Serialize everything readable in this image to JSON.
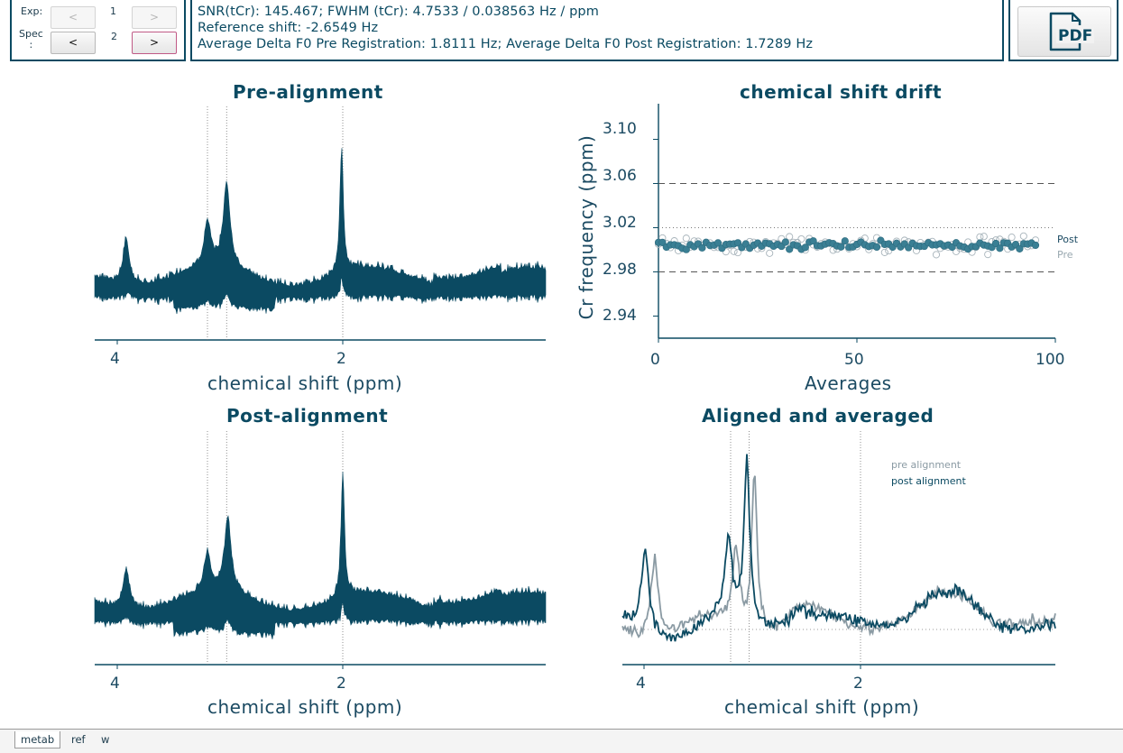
{
  "nav": {
    "exp_label": "Exp:",
    "spec_label": "Spec\n:",
    "exp_value": "1",
    "spec_value": "2",
    "prev_label": "<",
    "next_label": ">"
  },
  "info": {
    "line1": "SNR(tCr): 145.467; FWHM (tCr): 4.7533 / 0.038563 Hz / ppm",
    "line2": "Reference shift: -2.6549 Hz",
    "line3": "Average Delta F0 Pre Registration: 1.8111 Hz; Average Delta F0 Post Registration: 1.7289 Hz"
  },
  "pdf_button": {
    "label": "PDF",
    "icon": "pdf-file-icon"
  },
  "colors": {
    "accent": "#0b4a62",
    "pre_grey": "#8a9aa3",
    "post_dark": "#0b4a62",
    "drift_post": "#3a7f94",
    "drift_pre_ring": "#a8b4bb"
  },
  "plots": {
    "pre_title": "Pre-alignment",
    "post_title": "Post-alignment",
    "drift_title": "chemical shift drift",
    "avg_title": "Aligned and averaged",
    "xlabel": "chemical shift (ppm)",
    "drift_xlabel": "Averages",
    "drift_ylabel": "Cr frequency (ppm)",
    "tick_4": "4",
    "tick_2": "2",
    "drift_x_ticks": [
      "0",
      "50",
      "100"
    ],
    "drift_y_ticks": [
      "3.10",
      "3.06",
      "3.02",
      "2.98",
      "2.94"
    ],
    "drift_legend_post": "Post",
    "drift_legend_pre": "Pre",
    "avg_legend_pre": "pre alignment",
    "avg_legend_post": "post alignment"
  },
  "chart_data": [
    {
      "type": "line",
      "title": "Pre-alignment",
      "xlabel": "chemical shift (ppm)",
      "x_ticks": [
        4,
        2
      ],
      "x_reversed": true,
      "xlim": [
        4.2,
        0.2
      ],
      "markers_ppm": [
        3.2,
        3.03,
        2.0
      ],
      "peaks_ppm": [
        3.92,
        3.2,
        3.03,
        2.01
      ],
      "peak_relative_heights": [
        0.35,
        0.35,
        0.67,
        1.0
      ]
    },
    {
      "type": "scatter",
      "title": "chemical shift drift",
      "xlabel": "Averages",
      "ylabel": "Cr frequency (ppm)",
      "xlim": [
        0,
        100
      ],
      "ylim": [
        2.92,
        3.12
      ],
      "x_ticks": [
        0,
        50,
        100
      ],
      "y_ticks": [
        3.1,
        3.06,
        3.02,
        2.98,
        2.94
      ],
      "dashed_lines": [
        3.06,
        2.98
      ],
      "dotted_line": 3.02,
      "series": [
        {
          "name": "Post",
          "y_mean": 3.004,
          "y_spread": 0.003,
          "n": 96
        },
        {
          "name": "Pre",
          "y_mean": 3.005,
          "y_spread": 0.007,
          "n": 96
        }
      ],
      "legend": "right"
    },
    {
      "type": "line",
      "title": "Post-alignment",
      "xlabel": "chemical shift (ppm)",
      "x_ticks": [
        4,
        2
      ],
      "x_reversed": true,
      "xlim": [
        4.2,
        0.2
      ],
      "markers_ppm": [
        3.2,
        3.03,
        2.0
      ],
      "peaks_ppm": [
        3.92,
        3.2,
        3.02,
        2.0
      ],
      "peak_relative_heights": [
        0.32,
        0.3,
        0.6,
        1.0
      ]
    },
    {
      "type": "line",
      "title": "Aligned and averaged",
      "xlabel": "chemical shift (ppm)",
      "x_ticks": [
        4,
        2
      ],
      "x_reversed": true,
      "xlim": [
        4.2,
        0.2
      ],
      "markers_ppm": [
        3.2,
        3.03,
        2.0
      ],
      "series": [
        {
          "name": "pre alignment",
          "peaks_ppm": [
            3.9,
            3.15,
            2.98,
            2.5,
            1.3,
            1.03
          ],
          "peak_heights": [
            0.5,
            0.45,
            1.0,
            0.12,
            0.12,
            0.15
          ]
        },
        {
          "name": "post alignment",
          "peaks_ppm": [
            3.99,
            3.22,
            3.05,
            2.58,
            1.38,
            1.08
          ],
          "peak_heights": [
            0.5,
            0.47,
            1.0,
            0.13,
            0.12,
            0.15
          ]
        }
      ],
      "legend": "top-right"
    }
  ],
  "tabs": [
    "metab",
    "ref",
    "w"
  ]
}
